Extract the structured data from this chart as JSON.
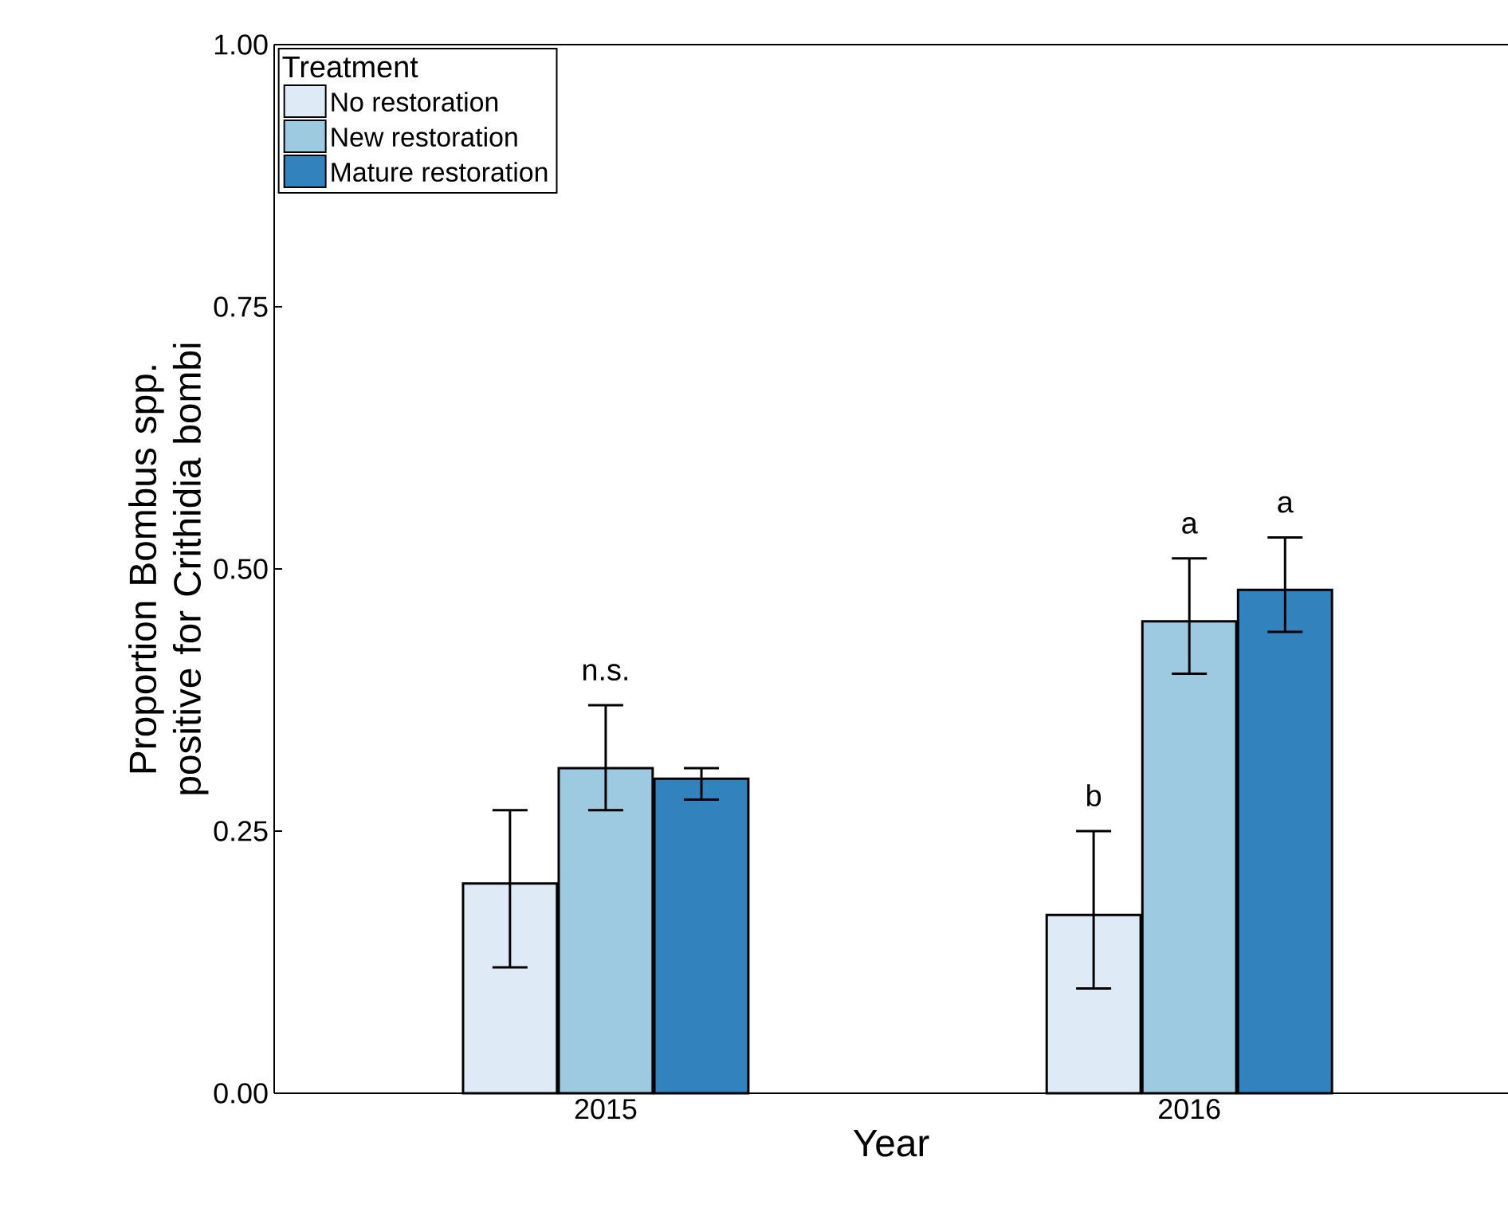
{
  "chart_data": {
    "type": "bar",
    "xlabel": "Year",
    "ylabel": "Proportion Bombus spp. positive for Crithidia bombi",
    "legend_title": "Treatment",
    "categories": [
      "2015",
      "2016"
    ],
    "series": [
      {
        "name": "No restoration",
        "color": "#deebf7",
        "values": [
          0.2,
          0.17
        ],
        "errors": [
          [
            0.12,
            0.27
          ],
          [
            0.1,
            0.25
          ]
        ]
      },
      {
        "name": "New restoration",
        "color": "#9ecae1",
        "values": [
          0.31,
          0.45
        ],
        "errors": [
          [
            0.27,
            0.37
          ],
          [
            0.4,
            0.51
          ]
        ]
      },
      {
        "name": "Mature restoration",
        "color": "#3182bd",
        "values": [
          0.3,
          0.48
        ],
        "errors": [
          [
            0.28,
            0.31
          ],
          [
            0.44,
            0.53
          ]
        ]
      }
    ],
    "ylim": [
      0,
      1
    ],
    "yticks": [
      {
        "value": 0,
        "label": "0.00"
      },
      {
        "value": 0.25,
        "label": "0.25"
      },
      {
        "value": 0.5,
        "label": "0.50"
      },
      {
        "value": 0.75,
        "label": "0.75"
      },
      {
        "value": 1,
        "label": "1.00"
      }
    ],
    "annotations": [
      "n.s.",
      "b",
      "a",
      "a"
    ],
    "legend": "top left",
    "grid": false
  }
}
